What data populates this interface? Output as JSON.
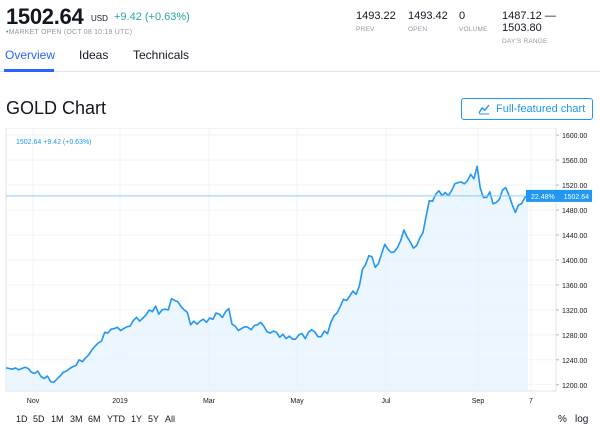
{
  "quote": {
    "price": "1502.64",
    "currency": "USD",
    "change": "+9.42 (+0.63%)",
    "status_dot": "•",
    "status": "MARKET OPEN (OCT 08 10:19 UTC)",
    "stats": [
      {
        "value": "1493.22",
        "label": "PREV"
      },
      {
        "value": "1493.42",
        "label": "OPEN"
      },
      {
        "value": "0",
        "label": "VOLUME"
      },
      {
        "value": "1487.12 — 1503.80",
        "label": "DAY'S RANGE"
      }
    ]
  },
  "tabs": [
    {
      "label": "Overview",
      "active": true
    },
    {
      "label": "Ideas",
      "active": false
    },
    {
      "label": "Technicals",
      "active": false
    }
  ],
  "chart_header": {
    "title": "GOLD Chart",
    "button_icon": "chart-line-icon",
    "button_label": "Full-featured chart"
  },
  "chart_data": {
    "type": "area",
    "legend": "1502.64   +9.42 (+0.63%)",
    "x_ticks": [
      "Nov",
      "2019",
      "Mar",
      "May",
      "Jul",
      "Sep",
      "7"
    ],
    "y_ticks": [
      "1600.00",
      "1560.00",
      "1520.00",
      "1480.00",
      "1440.00",
      "1400.00",
      "1360.00",
      "1320.00",
      "1280.00",
      "1240.00",
      "1200.00"
    ],
    "ylim": [
      1190,
      1605
    ],
    "last_price": 1502.64,
    "last_price_label": "1502.64",
    "last_change_label": "22.48%",
    "values": [
      1227,
      1226,
      1225,
      1227,
      1224,
      1226,
      1228,
      1226,
      1220,
      1218,
      1222,
      1213,
      1210,
      1214,
      1205,
      1204,
      1209,
      1214,
      1220,
      1222,
      1226,
      1229,
      1231,
      1240,
      1237,
      1243,
      1248,
      1256,
      1262,
      1267,
      1270,
      1284,
      1283,
      1289,
      1290,
      1292,
      1287,
      1290,
      1293,
      1294,
      1303,
      1308,
      1302,
      1307,
      1312,
      1320,
      1317,
      1326,
      1313,
      1320,
      1321,
      1320,
      1338,
      1335,
      1333,
      1325,
      1320,
      1316,
      1296,
      1302,
      1297,
      1302,
      1305,
      1300,
      1307,
      1305,
      1315,
      1313,
      1308,
      1317,
      1322,
      1297,
      1294,
      1287,
      1290,
      1293,
      1292,
      1288,
      1295,
      1296,
      1300,
      1294,
      1285,
      1283,
      1286,
      1284,
      1276,
      1281,
      1274,
      1278,
      1273,
      1273,
      1280,
      1282,
      1274,
      1284,
      1288,
      1285,
      1277,
      1277,
      1286,
      1282,
      1299,
      1310,
      1315,
      1325,
      1337,
      1335,
      1342,
      1350,
      1345,
      1358,
      1385,
      1393,
      1407,
      1405,
      1388,
      1394,
      1410,
      1425,
      1417,
      1412,
      1413,
      1420,
      1431,
      1448,
      1437,
      1429,
      1419,
      1423,
      1435,
      1444,
      1470,
      1495,
      1494,
      1505,
      1511,
      1503,
      1508,
      1503,
      1511,
      1522,
      1524,
      1525,
      1522,
      1527,
      1537,
      1530,
      1550,
      1515,
      1500,
      1500,
      1509,
      1490,
      1492,
      1497,
      1512,
      1516,
      1504,
      1489,
      1476,
      1488,
      1490,
      1500,
      1503
    ],
    "grid": true,
    "fill_color": "#e3f2fd",
    "line_color": "#2196f3",
    "price_line_color": "#90caf9"
  },
  "range_buttons": [
    "1D",
    "5D",
    "1M",
    "3M",
    "6M",
    "YTD",
    "1Y",
    "5Y",
    "All"
  ],
  "scale_buttons": [
    "%",
    "log"
  ],
  "colors": {
    "accent": "#2962ff",
    "positive": "#26a69a",
    "line": "#2196f3"
  }
}
